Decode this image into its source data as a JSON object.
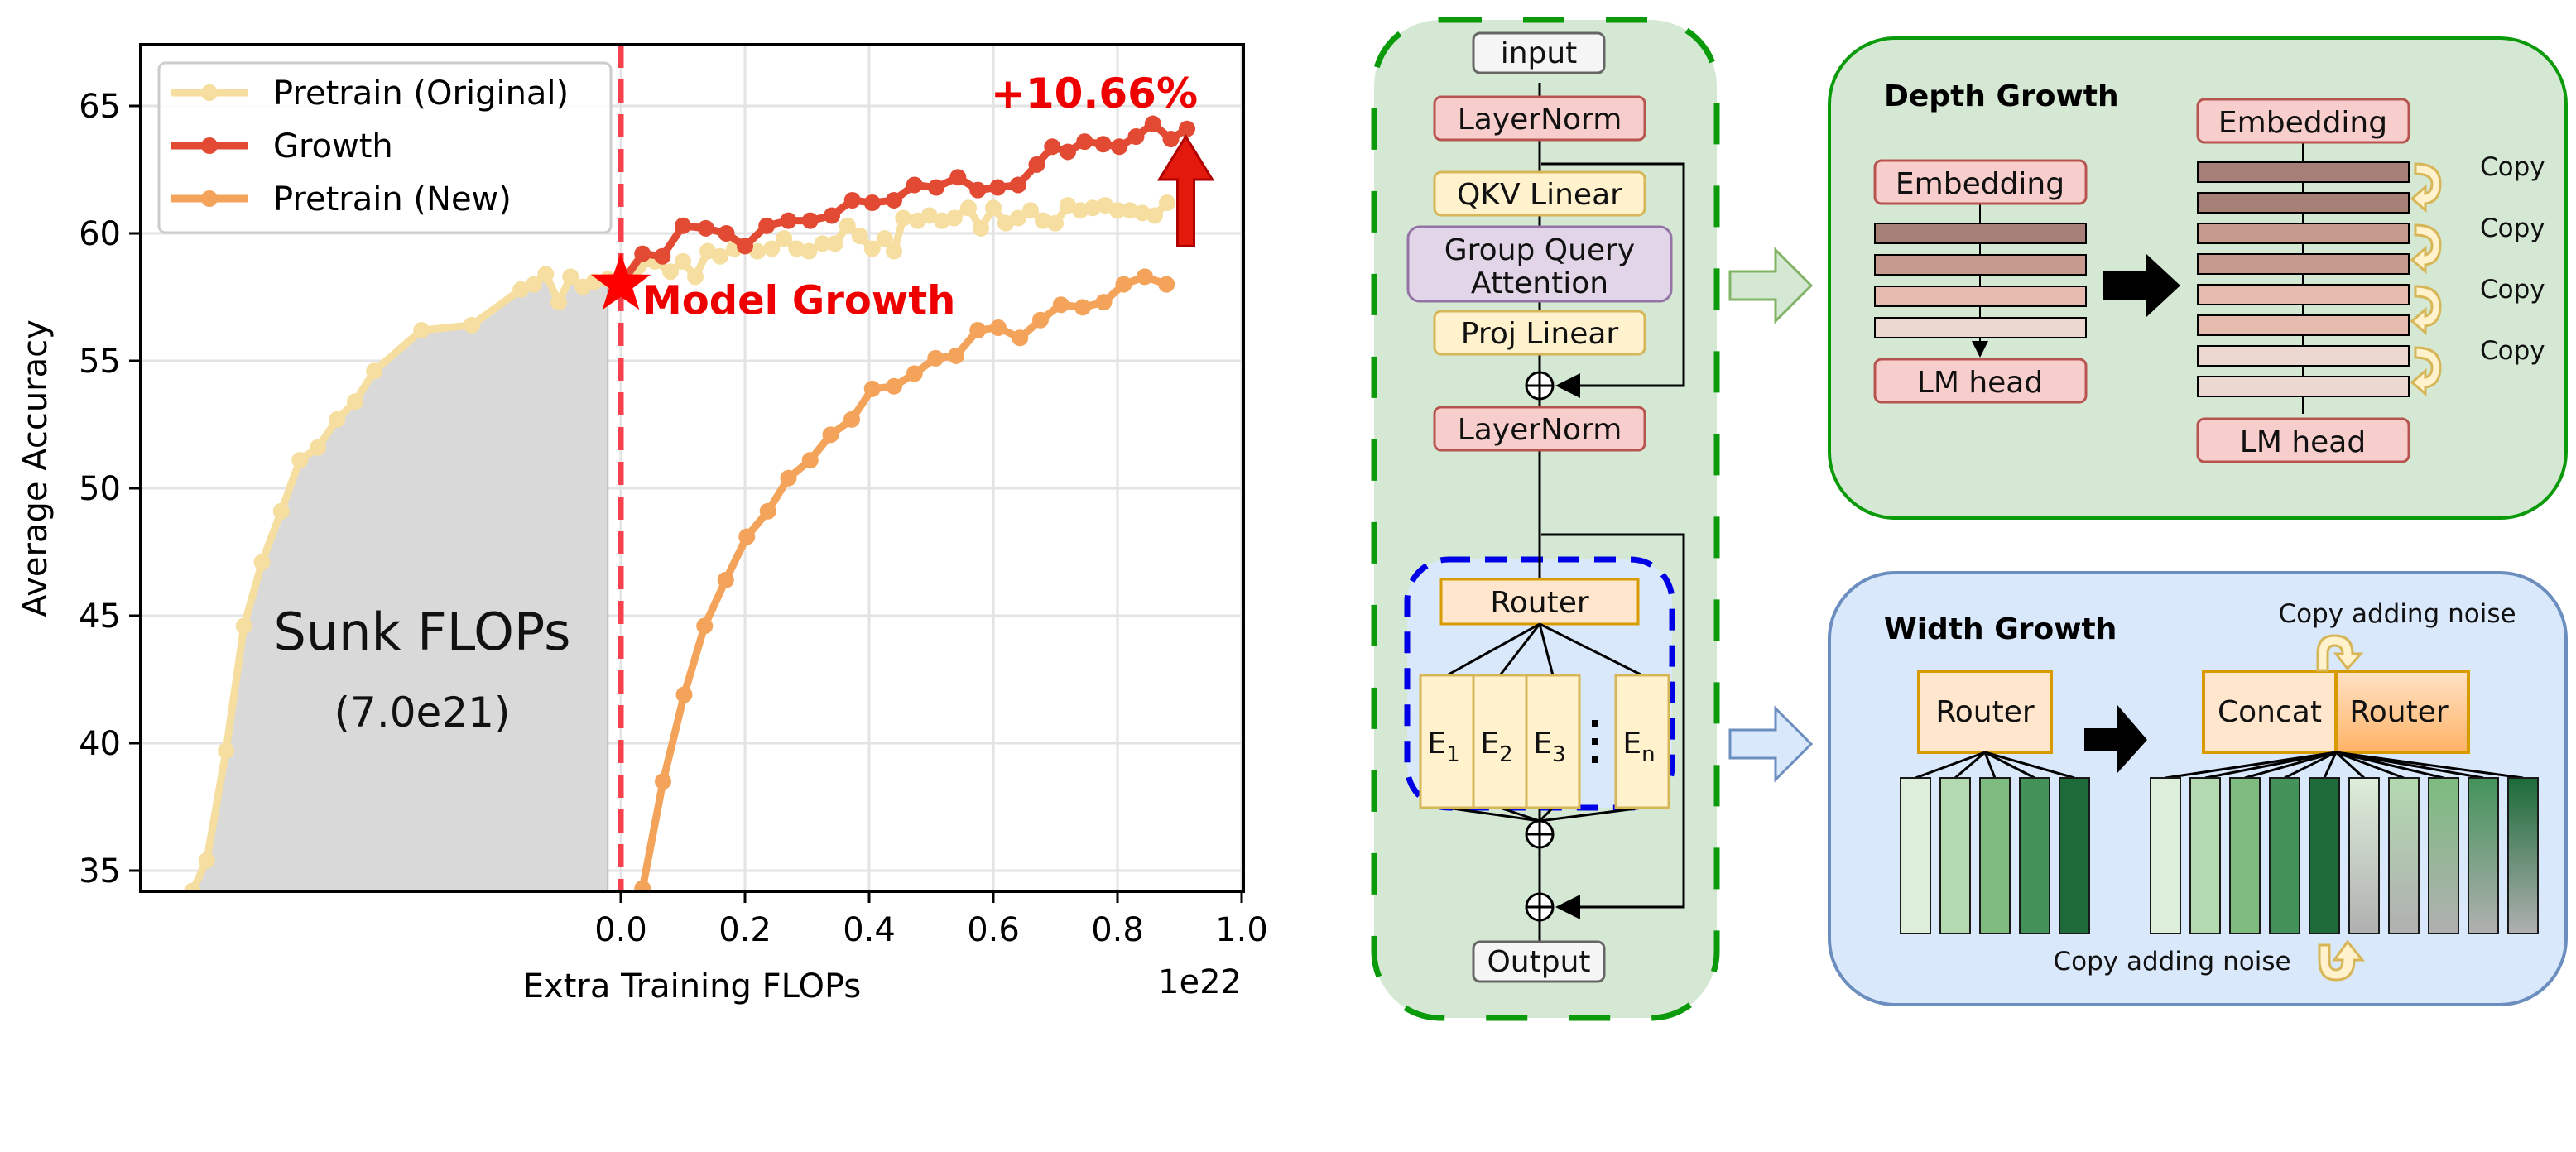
{
  "chart_data": {
    "type": "line",
    "title": "",
    "xlabel": "Extra Training FLOPs",
    "ylabel": "Average Accuracy",
    "x_scale_label": "1e22",
    "xlim": [
      -0.773,
      1.003
    ],
    "ylim": [
      34.2,
      67.4
    ],
    "xticks": [
      0.0,
      0.2,
      0.4,
      0.6,
      0.8,
      1.0
    ],
    "xtick_labels": [
      "0.0",
      "0.2",
      "0.4",
      "0.6",
      "0.8",
      "1.0"
    ],
    "yticks": [
      35,
      40,
      45,
      50,
      55,
      60,
      65
    ],
    "ytick_labels": [
      "35",
      "40",
      "45",
      "50",
      "55",
      "60",
      "65"
    ],
    "grid": true,
    "legend_position": "top-left",
    "series": [
      {
        "name": "Pretrain (Original)",
        "color": "#F5DE9F",
        "x": [
          -0.69,
          -0.667,
          -0.636,
          -0.607,
          -0.578,
          -0.547,
          -0.517,
          -0.488,
          -0.457,
          -0.428,
          -0.397,
          -0.321,
          -0.24,
          -0.161,
          -0.14,
          -0.121,
          -0.1,
          -0.081,
          -0.061,
          -0.043,
          -0.021,
          0.0,
          0.028,
          0.055,
          0.08,
          0.1,
          0.12,
          0.14,
          0.16,
          0.183,
          0.22,
          0.243,
          0.263,
          0.283,
          0.303,
          0.325,
          0.345,
          0.365,
          0.385,
          0.405,
          0.425,
          0.44,
          0.455,
          0.478,
          0.497,
          0.517,
          0.537,
          0.56,
          0.58,
          0.6,
          0.62,
          0.64,
          0.66,
          0.68,
          0.7,
          0.72,
          0.74,
          0.76,
          0.78,
          0.8,
          0.82,
          0.84,
          0.86,
          0.88
        ],
        "y": [
          34.2,
          35.4,
          39.7,
          44.6,
          47.1,
          49.1,
          51.1,
          51.6,
          52.7,
          53.4,
          54.6,
          56.2,
          56.4,
          57.8,
          58.0,
          58.4,
          57.3,
          58.3,
          57.9,
          58.1,
          58.2,
          58.0,
          58.7,
          58.9,
          58.5,
          58.9,
          58.3,
          59.3,
          59.1,
          59.4,
          59.3,
          59.4,
          59.8,
          59.4,
          59.3,
          59.6,
          59.6,
          60.3,
          59.9,
          59.4,
          59.8,
          59.3,
          60.6,
          60.5,
          60.7,
          60.5,
          60.6,
          61.0,
          60.2,
          61.0,
          60.4,
          60.6,
          60.9,
          60.5,
          60.4,
          61.1,
          60.9,
          61.0,
          61.1,
          60.9,
          60.9,
          60.8,
          60.7,
          61.2
        ]
      },
      {
        "name": "Growth",
        "color": "#E34A33",
        "x": [
          0.0,
          0.035,
          0.067,
          0.1,
          0.137,
          0.17,
          0.2,
          0.235,
          0.27,
          0.305,
          0.34,
          0.373,
          0.405,
          0.44,
          0.473,
          0.508,
          0.543,
          0.575,
          0.607,
          0.64,
          0.67,
          0.695,
          0.72,
          0.747,
          0.777,
          0.803,
          0.83,
          0.857,
          0.886,
          0.912
        ],
        "y": [
          58.0,
          59.2,
          59.1,
          60.3,
          60.2,
          60.0,
          59.5,
          60.3,
          60.5,
          60.5,
          60.7,
          61.3,
          61.2,
          61.3,
          61.9,
          61.8,
          62.2,
          61.7,
          61.8,
          61.9,
          62.7,
          63.4,
          63.2,
          63.6,
          63.5,
          63.4,
          63.8,
          64.3,
          63.7,
          64.1
        ]
      },
      {
        "name": "Pretrain (New)",
        "color": "#F4A35A",
        "x": [
          0.035,
          0.068,
          0.102,
          0.135,
          0.169,
          0.203,
          0.237,
          0.27,
          0.305,
          0.338,
          0.372,
          0.405,
          0.44,
          0.473,
          0.507,
          0.54,
          0.575,
          0.608,
          0.643,
          0.676,
          0.709,
          0.744,
          0.778,
          0.81,
          0.844,
          0.879
        ],
        "y": [
          34.3,
          38.5,
          41.9,
          44.6,
          46.4,
          48.1,
          49.1,
          50.4,
          51.1,
          52.1,
          52.7,
          53.9,
          54.0,
          54.5,
          55.1,
          55.2,
          56.2,
          56.3,
          55.9,
          56.6,
          57.2,
          57.1,
          57.3,
          58.0,
          58.3,
          58.0
        ]
      }
    ],
    "annotations": {
      "growth_point": {
        "x": 0.0,
        "y": 58.0,
        "label": "Model Growth",
        "marker": "star",
        "color": "#FF0000"
      },
      "vline_x": 0.0,
      "gain_label": "+10.66%",
      "gain_arrow": {
        "x": 0.91,
        "y_from": 59.5,
        "y_to": 63.8
      },
      "sunk_region": {
        "x_from": -0.69,
        "x_to": -0.021,
        "label": "Sunk FLOPs",
        "sublabel": "(7.0e21)",
        "color": "#D9D9D9"
      }
    }
  },
  "diagram": {
    "architecture": {
      "input_label": "input",
      "layernorm1_label": "LayerNorm",
      "qkv_label": "QKV Linear",
      "gqa_line1": "Group Query",
      "gqa_line2": "Attention",
      "proj_label": "Proj Linear",
      "layernorm2_label": "LayerNorm",
      "router_label": "Router",
      "experts": [
        {
          "base": "E",
          "sub": "1"
        },
        {
          "base": "E",
          "sub": "2"
        },
        {
          "base": "E",
          "sub": "3"
        },
        {
          "base": "E",
          "sub": "n"
        }
      ],
      "output_label": "Output"
    },
    "depth_growth": {
      "title": "Depth Growth",
      "embedding_label": "Embedding",
      "lm_head_label": "LM head",
      "layer_colors": [
        "#A67F77",
        "#C79A8F",
        "#E5BBAF",
        "#EDD7D1"
      ],
      "copy_label": "Copy",
      "copy_count": 4
    },
    "width_growth": {
      "title": "Width Growth",
      "router_label": "Router",
      "concat_label": "Concat",
      "new_router_label": "Router",
      "copy_noise_top": "Copy adding noise",
      "copy_noise_bottom": "Copy adding noise",
      "expert_colors": [
        "#DDEEDA",
        "#B3D9B0",
        "#7DBB7F",
        "#43925A",
        "#1C6B39"
      ]
    }
  }
}
